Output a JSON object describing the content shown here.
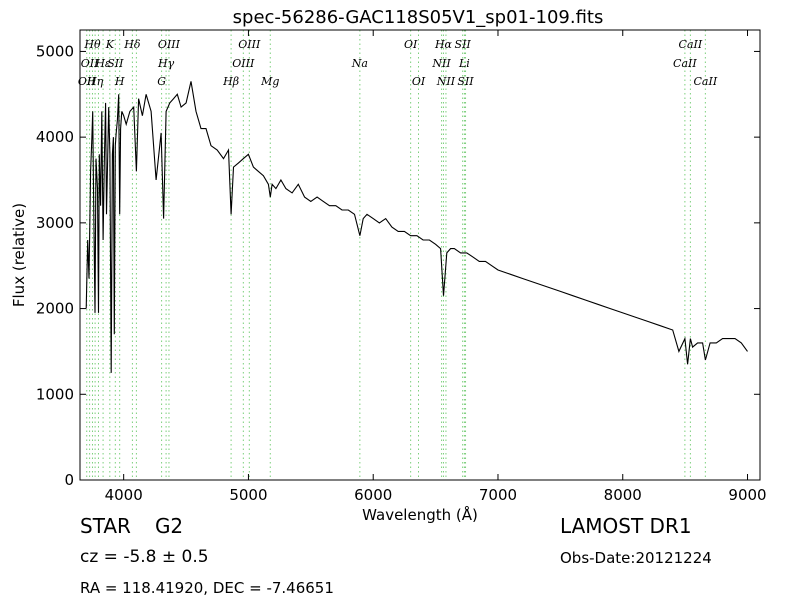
{
  "chart_data": {
    "type": "line",
    "title": "spec-56286-GAC118S05V1_sp01-109.fits",
    "xlabel": "Wavelength (Å)",
    "ylabel": "Flux (relative)",
    "xlim": [
      3650,
      9100
    ],
    "ylim": [
      0,
      5250
    ],
    "grid": false,
    "xticks": [
      4000,
      5000,
      6000,
      7000,
      8000,
      9000
    ],
    "yticks": [
      0,
      1000,
      2000,
      3000,
      4000,
      5000
    ],
    "series": [
      {
        "x": [
          3700,
          3712,
          3722,
          3735,
          3745,
          3752,
          3760,
          3770,
          3778,
          3790,
          3798,
          3805,
          3815,
          3825,
          3835,
          3845,
          3855,
          3862,
          3870,
          3880,
          3890,
          3900,
          3910,
          3918,
          3925,
          3933,
          3940,
          3950,
          3960,
          3968,
          3975,
          3985,
          4000,
          4020,
          4050,
          4080,
          4102,
          4120,
          4150,
          4180,
          4220,
          4260,
          4300,
          4320,
          4340,
          4370,
          4400,
          4430,
          4460,
          4500,
          4540,
          4580,
          4620,
          4660,
          4700,
          4750,
          4800,
          4840,
          4861,
          4880,
          4920,
          4960,
          5000,
          5040,
          5080,
          5120,
          5160,
          5175,
          5190,
          5220,
          5260,
          5300,
          5350,
          5400,
          5450,
          5500,
          5550,
          5600,
          5650,
          5700,
          5750,
          5800,
          5850,
          5893,
          5920,
          5950,
          6000,
          6050,
          6100,
          6150,
          6200,
          6250,
          6300,
          6350,
          6400,
          6450,
          6500,
          6540,
          6563,
          6590,
          6620,
          6650,
          6700,
          6750,
          6800,
          6850,
          6900,
          6950,
          7000,
          7100,
          7200,
          7300,
          7400,
          7500,
          7600,
          7700,
          7800,
          7900,
          8000,
          8100,
          8200,
          8300,
          8400,
          8450,
          8498,
          8520,
          8542,
          8560,
          8600,
          8640,
          8662,
          8700,
          8750,
          8800,
          8850,
          8900,
          8950,
          9000
        ],
        "y": [
          2000,
          2800,
          2350,
          3600,
          4000,
          4300,
          3200,
          1950,
          3750,
          3400,
          1950,
          3800,
          3200,
          4300,
          2800,
          3700,
          4400,
          3100,
          3600,
          4350,
          3800,
          1250,
          3800,
          4000,
          1700,
          3900,
          4050,
          4200,
          4500,
          3100,
          4100,
          4300,
          4250,
          4150,
          4300,
          4350,
          3600,
          4450,
          4250,
          4500,
          4300,
          3500,
          4050,
          3050,
          4300,
          4400,
          4450,
          4500,
          4350,
          4400,
          4650,
          4300,
          4100,
          4100,
          3900,
          3850,
          3750,
          3850,
          3100,
          3650,
          3700,
          3750,
          3800,
          3650,
          3600,
          3550,
          3450,
          3300,
          3450,
          3400,
          3500,
          3400,
          3350,
          3450,
          3300,
          3250,
          3300,
          3250,
          3200,
          3200,
          3150,
          3150,
          3100,
          2850,
          3050,
          3100,
          3050,
          3000,
          3050,
          2950,
          2900,
          2900,
          2850,
          2850,
          2800,
          2800,
          2750,
          2700,
          2150,
          2650,
          2700,
          2700,
          2650,
          2650,
          2600,
          2550,
          2550,
          2500,
          2450,
          2400,
          2350,
          2300,
          2250,
          2200,
          2150,
          2100,
          2050,
          2000,
          1950,
          1900,
          1850,
          1800,
          1750,
          1500,
          1650,
          1350,
          1650,
          1550,
          1600,
          1600,
          1400,
          1600,
          1600,
          1650,
          1650,
          1650,
          1600,
          1500
        ]
      }
    ],
    "lines": [
      {
        "x": 3704,
        "label": "OII",
        "row": 2
      },
      {
        "x": 3727,
        "label": "OII",
        "row": 1
      },
      {
        "x": 3750,
        "label": "Hθ",
        "row": 0
      },
      {
        "x": 3771,
        "label": "Hη",
        "row": 2
      },
      {
        "x": 3798,
        "label": "",
        "row": -1
      },
      {
        "x": 3835,
        "label": "Hε",
        "row": 1
      },
      {
        "x": 3889,
        "label": "K",
        "row": 0
      },
      {
        "x": 3933,
        "label": "SII",
        "row": 1
      },
      {
        "x": 3968,
        "label": "H",
        "row": 2
      },
      {
        "x": 4070,
        "label": "Hδ",
        "row": 0
      },
      {
        "x": 4102,
        "label": "",
        "row": -1
      },
      {
        "x": 4304,
        "label": "G",
        "row": 2
      },
      {
        "x": 4340,
        "label": "Hγ",
        "row": 1
      },
      {
        "x": 4363,
        "label": "OIII",
        "row": 0
      },
      {
        "x": 4861,
        "label": "Hβ",
        "row": 2
      },
      {
        "x": 4959,
        "label": "OIII",
        "row": 1
      },
      {
        "x": 5007,
        "label": "OIII",
        "row": 0
      },
      {
        "x": 5175,
        "label": "Mg",
        "row": 2
      },
      {
        "x": 5893,
        "label": "Na",
        "row": 1
      },
      {
        "x": 6300,
        "label": "OI",
        "row": 0
      },
      {
        "x": 6363,
        "label": "OI",
        "row": 2
      },
      {
        "x": 6548,
        "label": "NII",
        "row": 1
      },
      {
        "x": 6563,
        "label": "Hα",
        "row": 0
      },
      {
        "x": 6583,
        "label": "NII",
        "row": 2
      },
      {
        "x": 6717,
        "label": "SII",
        "row": 0
      },
      {
        "x": 6731,
        "label": "Li",
        "row": 1
      },
      {
        "x": 6740,
        "label": "SII",
        "row": 2
      },
      {
        "x": 8498,
        "label": "CaII",
        "row": 1
      },
      {
        "x": 8542,
        "label": "CaII",
        "row": 0
      },
      {
        "x": 8662,
        "label": "CaII",
        "row": 2
      }
    ]
  },
  "info": {
    "object_type": "STAR",
    "subclass": "G2",
    "cz": "cz = -5.8 ± 0.5",
    "radec": "RA = 118.41920, DEC = -7.46651",
    "release": "LAMOST DR1",
    "obs_date": "Obs-Date:20121224"
  },
  "colors": {
    "spectrum": "#000000",
    "line_marker": "#7ccf7c",
    "axes": "#000000",
    "background": "#ffffff"
  }
}
